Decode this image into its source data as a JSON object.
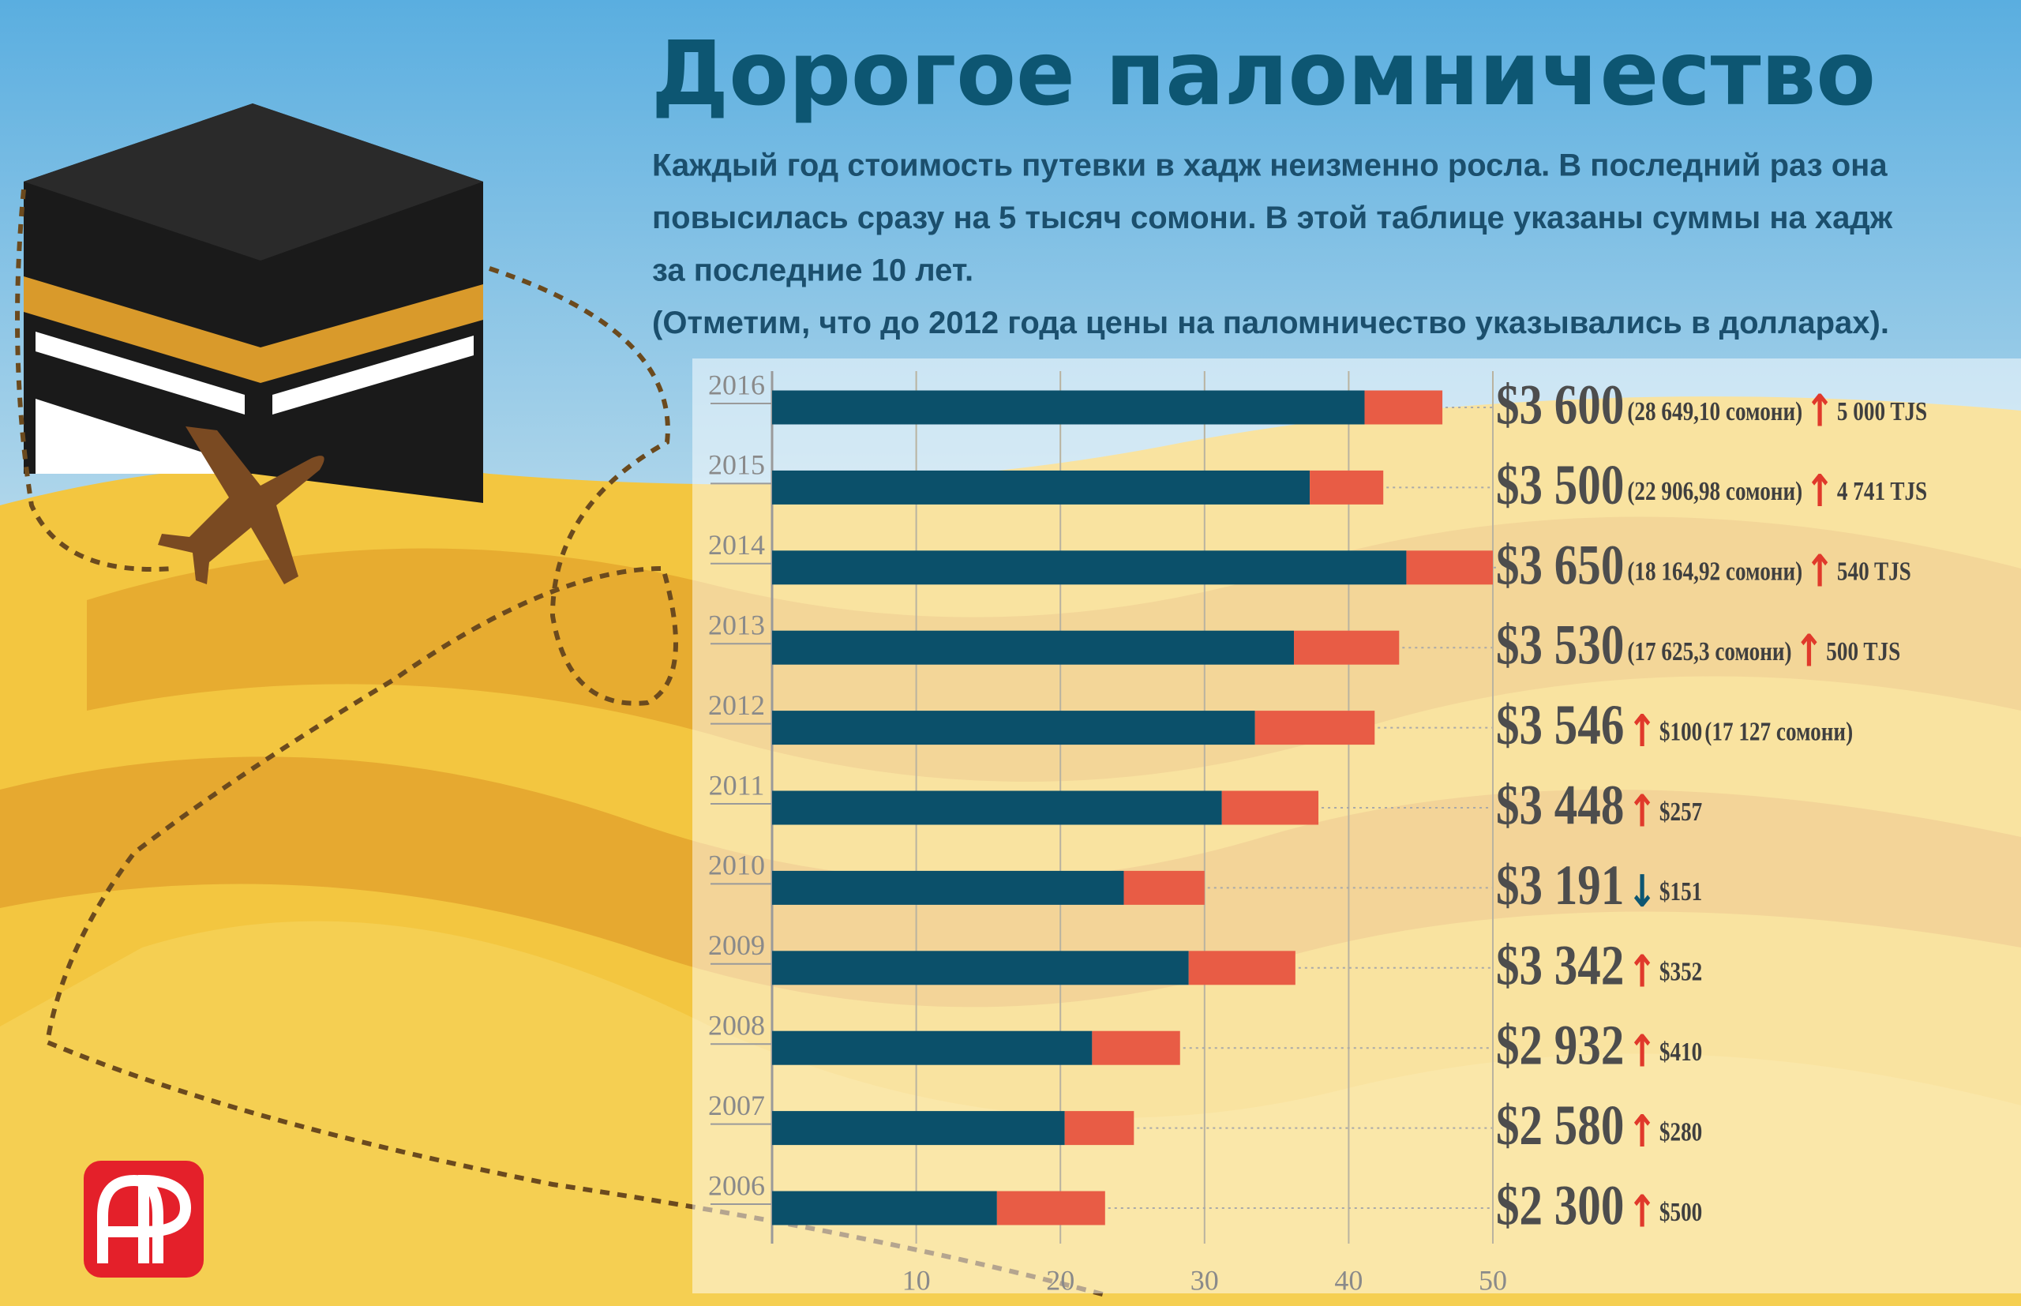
{
  "chart_data": {
    "type": "bar",
    "horizontal": true,
    "stacked": true,
    "title": "Дорогое паломничество",
    "subtitle": [
      "Каждый год стоимость путевки в хадж неизменно росла. В последний раз она",
      "повысилась сразу на 5 тысяч сомони. В этой таблице указаны суммы на хадж",
      "за последние 10 лет.",
      "(Отметим, что до 2012 года цены на паломничество указывались в долларах)."
    ],
    "categories": [
      "2016",
      "2015",
      "2014",
      "2013",
      "2012",
      "2011",
      "2010",
      "2009",
      "2008",
      "2007",
      "2006"
    ],
    "series": [
      {
        "color": "#0b506a",
        "values": [
          41.1,
          37.3,
          44.0,
          36.2,
          33.5,
          31.2,
          24.4,
          28.9,
          22.2,
          20.3,
          15.6
        ]
      },
      {
        "color": "#e85c45",
        "values": [
          5.4,
          5.1,
          6.0,
          7.3,
          8.3,
          6.7,
          5.6,
          7.4,
          6.1,
          4.8,
          7.5
        ]
      }
    ],
    "xlim": [
      0,
      50
    ],
    "xticks": [
      10,
      20,
      30,
      40,
      50
    ],
    "grid": true,
    "annotations": [
      [
        "$3 600",
        "(28 649,10 сомони)",
        "↑",
        "5 000 TJS"
      ],
      [
        "$3 500",
        "(22 906,98 сомони)",
        "↑",
        "4 741 TJS"
      ],
      [
        "$3 650",
        "(18 164,92 сомони)",
        "↑",
        "540 TJS"
      ],
      [
        "$3 530",
        "(17 625,3 сомони)",
        "↑",
        "500 TJS"
      ],
      [
        "$3 546",
        "↑",
        "$100",
        "(17 127 сомони)"
      ],
      [
        "$3 448",
        "↑",
        "$257"
      ],
      [
        "$3 191",
        "↓",
        "$151"
      ],
      [
        "$3 342",
        "↑",
        "$352"
      ],
      [
        "$2 932",
        "↑",
        "$410"
      ],
      [
        "$2 580",
        "↑",
        "$280"
      ],
      [
        "$2 300",
        "↑",
        "$500"
      ]
    ]
  }
}
